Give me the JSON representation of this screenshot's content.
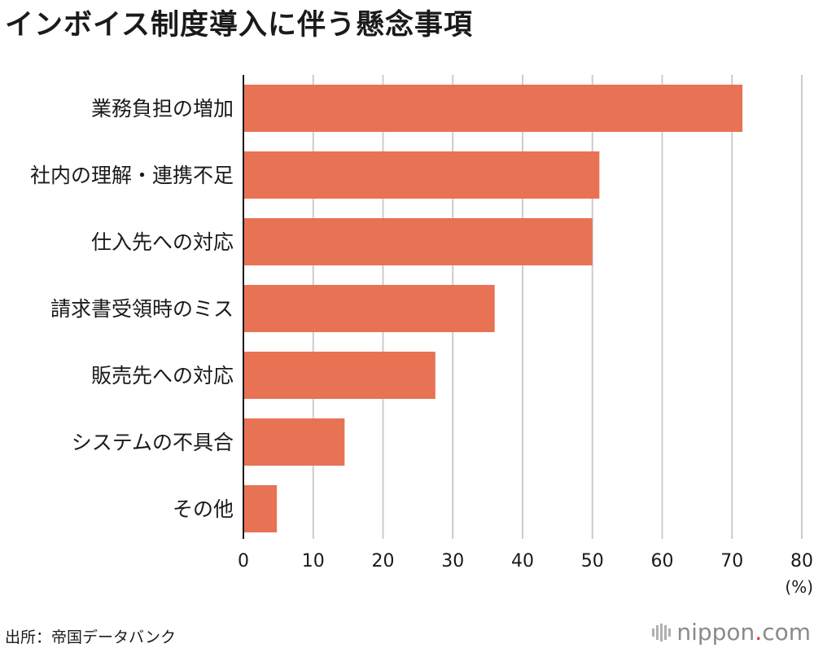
{
  "title": "インボイス制度導入に伴う懸念事項",
  "source": "出所：帝国データバンク",
  "brand": {
    "name": "nippon",
    "dot": ".",
    "tld": "com",
    "icon": "microphone-bars-icon"
  },
  "colors": {
    "bar": "#e87254",
    "grid": "#cccccc",
    "axis": "#1a1a1a",
    "text": "#1a1a1a",
    "brand_dot": "#d6362a"
  },
  "chart_data": {
    "type": "bar",
    "orientation": "horizontal",
    "title": "インボイス制度導入に伴う懸念事項",
    "categories": [
      "業務負担の増加",
      "社内の理解・連携不足",
      "仕入先への対応",
      "請求書受領時のミス",
      "販売先への対応",
      "システムの不具合",
      "その他"
    ],
    "values": [
      71.5,
      51.0,
      50.0,
      36.0,
      27.5,
      14.5,
      4.8
    ],
    "xlim": [
      0,
      80
    ],
    "xticks": [
      0,
      10,
      20,
      30,
      40,
      50,
      60,
      70,
      80
    ],
    "unit": "(%)",
    "grid": true
  }
}
